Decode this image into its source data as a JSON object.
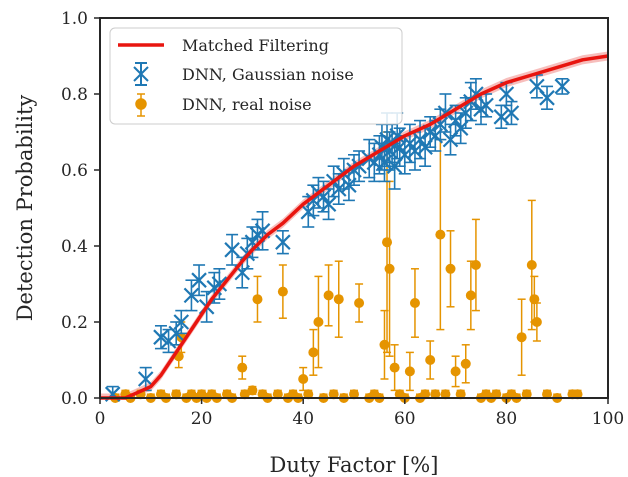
{
  "chart_data": {
    "type": "scatter",
    "xlabel": "Duty Factor [%]",
    "ylabel": "Detection Probability",
    "xlim": [
      0,
      100
    ],
    "ylim": [
      0,
      1
    ],
    "x_ticks": [
      "0",
      "20",
      "40",
      "60",
      "80",
      "100"
    ],
    "y_ticks": [
      "0.0",
      "0.2",
      "0.4",
      "0.6",
      "0.8",
      "1.0"
    ],
    "grid": false,
    "legend_position": "top-left",
    "series": [
      {
        "name": "Matched Filtering",
        "kind": "line",
        "color": "#e8150f",
        "band_color": "#f4a3a0",
        "x": [
          0,
          5,
          10,
          12,
          14,
          16,
          18,
          20,
          22,
          25,
          28,
          30,
          33,
          36,
          40,
          45,
          50,
          55,
          60,
          65,
          70,
          75,
          80,
          85,
          90,
          95,
          100
        ],
        "y": [
          0.0,
          0.0,
          0.03,
          0.06,
          0.1,
          0.14,
          0.18,
          0.22,
          0.26,
          0.31,
          0.36,
          0.39,
          0.43,
          0.46,
          0.51,
          0.56,
          0.61,
          0.65,
          0.69,
          0.72,
          0.76,
          0.8,
          0.83,
          0.85,
          0.87,
          0.89,
          0.9
        ]
      },
      {
        "name": "DNN, Gaussian noise",
        "kind": "x-marker",
        "color": "#1f78b4",
        "x": [
          2.5,
          9,
          12,
          13.5,
          15,
          16,
          18,
          19.5,
          21,
          22.5,
          23.5,
          26,
          28,
          29,
          30,
          31,
          32,
          36,
          41,
          42,
          43,
          44,
          45,
          46,
          47,
          48,
          49,
          50,
          51,
          53,
          54,
          55,
          55.5,
          56,
          56.5,
          57,
          57.5,
          58,
          58.5,
          59,
          60,
          61,
          62,
          63,
          64,
          65,
          66,
          67,
          68,
          69,
          70,
          71,
          72,
          73,
          74,
          75,
          76,
          79,
          80,
          81,
          86,
          88,
          91
        ],
        "y": [
          0.01,
          0.05,
          0.16,
          0.15,
          0.17,
          0.2,
          0.27,
          0.31,
          0.24,
          0.29,
          0.3,
          0.39,
          0.33,
          0.38,
          0.41,
          0.43,
          0.44,
          0.41,
          0.49,
          0.52,
          0.54,
          0.53,
          0.51,
          0.57,
          0.55,
          0.59,
          0.56,
          0.6,
          0.61,
          0.63,
          0.62,
          0.64,
          0.66,
          0.62,
          0.68,
          0.65,
          0.67,
          0.61,
          0.69,
          0.66,
          0.64,
          0.67,
          0.65,
          0.68,
          0.66,
          0.7,
          0.69,
          0.72,
          0.75,
          0.68,
          0.73,
          0.71,
          0.75,
          0.78,
          0.8,
          0.76,
          0.77,
          0.74,
          0.8,
          0.75,
          0.82,
          0.79,
          0.82
        ],
        "err": [
          0.02,
          0.03,
          0.03,
          0.03,
          0.03,
          0.03,
          0.04,
          0.04,
          0.04,
          0.04,
          0.04,
          0.04,
          0.04,
          0.04,
          0.04,
          0.04,
          0.05,
          0.03,
          0.04,
          0.04,
          0.04,
          0.04,
          0.04,
          0.04,
          0.04,
          0.04,
          0.04,
          0.04,
          0.04,
          0.05,
          0.05,
          0.05,
          0.06,
          0.05,
          0.07,
          0.05,
          0.05,
          0.06,
          0.06,
          0.05,
          0.05,
          0.05,
          0.05,
          0.05,
          0.05,
          0.04,
          0.04,
          0.04,
          0.05,
          0.04,
          0.04,
          0.04,
          0.04,
          0.05,
          0.04,
          0.04,
          0.03,
          0.03,
          0.03,
          0.03,
          0.03,
          0.03,
          0.02
        ]
      },
      {
        "name": "DNN, real noise",
        "kind": "dot-marker",
        "color": "#e59400",
        "x": [
          3,
          5,
          6,
          8,
          10,
          12,
          13,
          15,
          15.5,
          16,
          17,
          18,
          19,
          20,
          21,
          22,
          23,
          25,
          26,
          28,
          28.5,
          30,
          31,
          32,
          33,
          35,
          36,
          37,
          38,
          39,
          40,
          41,
          42,
          43,
          44,
          45,
          46,
          47,
          48,
          50,
          51,
          53,
          54,
          55,
          56,
          56.5,
          57,
          58,
          59,
          60,
          61,
          62,
          63,
          64,
          65,
          66,
          67,
          68,
          69,
          70,
          71,
          72,
          73,
          74,
          75,
          76,
          77,
          78,
          80,
          81,
          82,
          83,
          84,
          85,
          85.5,
          86,
          88,
          90,
          93,
          94
        ],
        "y": [
          0.0,
          0.01,
          0.0,
          0.01,
          0.0,
          0.01,
          0.0,
          0.01,
          0.11,
          0.16,
          0.0,
          0.01,
          0.0,
          0.01,
          0.0,
          0.01,
          0.0,
          0.01,
          0.0,
          0.08,
          0.01,
          0.02,
          0.26,
          0.01,
          0.0,
          0.01,
          0.28,
          0.0,
          0.01,
          0.0,
          0.05,
          0.01,
          0.12,
          0.2,
          0.0,
          0.27,
          0.01,
          0.26,
          0.0,
          0.01,
          0.25,
          0.0,
          0.01,
          0.0,
          0.14,
          0.41,
          0.34,
          0.08,
          0.01,
          0.0,
          0.07,
          0.25,
          0.0,
          0.01,
          0.1,
          0.01,
          0.43,
          0.01,
          0.34,
          0.07,
          0.01,
          0.09,
          0.27,
          0.35,
          0.0,
          0.01,
          0.0,
          0.01,
          0.0,
          0.01,
          0.0,
          0.16,
          0.01,
          0.35,
          0.26,
          0.2,
          0.01,
          0.0,
          0.01,
          0.01
        ],
        "err": [
          0.01,
          0.01,
          0.01,
          0.01,
          0.01,
          0.01,
          0.01,
          0.01,
          0.03,
          0.04,
          0.01,
          0.01,
          0.01,
          0.01,
          0.01,
          0.01,
          0.01,
          0.01,
          0.01,
          0.03,
          0.01,
          0.01,
          0.06,
          0.01,
          0.01,
          0.01,
          0.07,
          0.01,
          0.01,
          0.01,
          0.03,
          0.01,
          0.06,
          0.12,
          0.01,
          0.08,
          0.01,
          0.1,
          0.01,
          0.01,
          0.05,
          0.01,
          0.01,
          0.01,
          0.09,
          0.29,
          0.23,
          0.06,
          0.01,
          0.01,
          0.05,
          0.09,
          0.01,
          0.01,
          0.05,
          0.01,
          0.25,
          0.01,
          0.1,
          0.04,
          0.01,
          0.05,
          0.09,
          0.12,
          0.01,
          0.01,
          0.01,
          0.01,
          0.01,
          0.01,
          0.01,
          0.1,
          0.01,
          0.17,
          0.06,
          0.05,
          0.01,
          0.01,
          0.01,
          0.01
        ]
      }
    ]
  }
}
